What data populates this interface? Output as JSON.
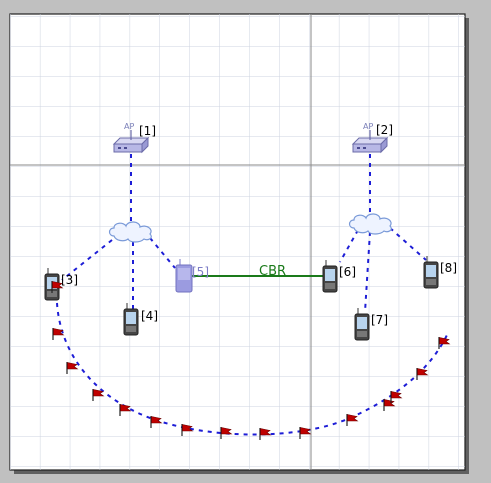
{
  "colors": {
    "background": "#c0c0c0",
    "canvas": "#ffffff",
    "grid": "#cdd3e0",
    "grid_major": "#8a8a8a",
    "link": "#1d1dd6",
    "flow": "#1a7a1a",
    "flag": "#c00000"
  },
  "access_points": [
    {
      "id": "ap1",
      "badge": "AP",
      "label": "[1]"
    },
    {
      "id": "ap2",
      "badge": "AP",
      "label": "[2]"
    }
  ],
  "clouds": [
    {
      "id": "cloud-left",
      "icon": "wireless-cloud-icon"
    },
    {
      "id": "cloud-right",
      "icon": "wireless-cloud-icon"
    }
  ],
  "nodes": [
    {
      "id": "n3",
      "label": "[3]"
    },
    {
      "id": "n4",
      "label": "[4]"
    },
    {
      "id": "n5",
      "label": "[5]",
      "selected": true
    },
    {
      "id": "n6",
      "label": "[6]"
    },
    {
      "id": "n7",
      "label": "[7]"
    },
    {
      "id": "n8",
      "label": "[8]"
    }
  ],
  "flow": {
    "label": "CBR",
    "from": "n5",
    "to": "n6"
  },
  "waypoint_flag_count": 17
}
